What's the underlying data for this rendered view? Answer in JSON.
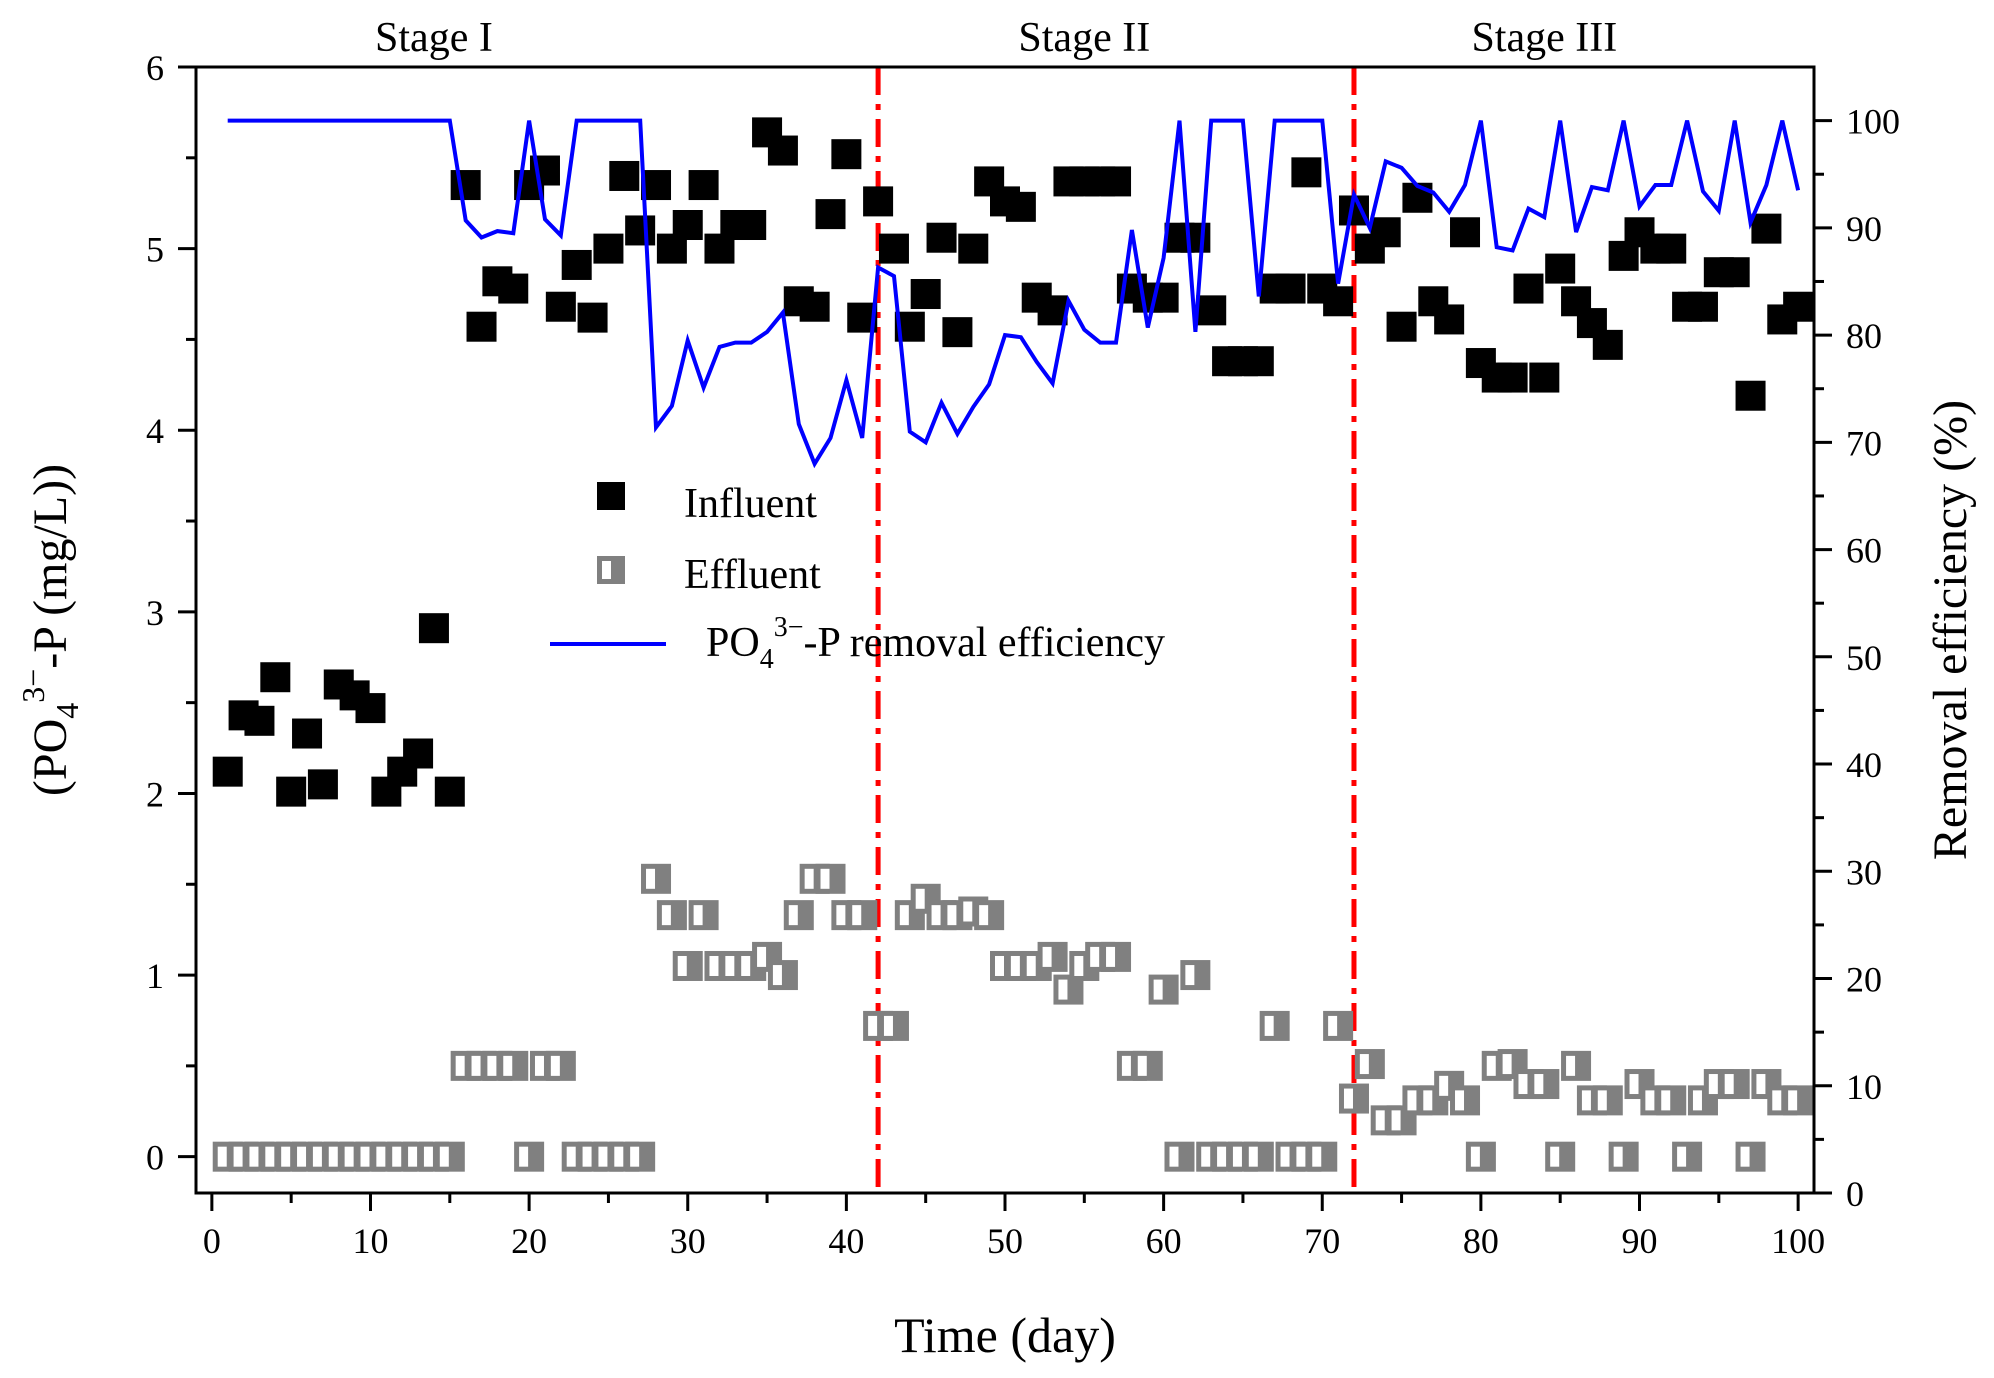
{
  "chart_data": {
    "type": "scatter",
    "title": "",
    "xlabel": "Time (day)",
    "ylabel_left": {
      "pre": "(PO",
      "sub": "4",
      "sup": "3−",
      "post": "-P  (mg/L))"
    },
    "ylabel_right": "Removal efficiency (%)",
    "xlim": [
      -1,
      101
    ],
    "ylim_left": [
      -0.2,
      6
    ],
    "ylim_right": [
      0,
      105
    ],
    "xticks": [
      0,
      10,
      20,
      30,
      40,
      50,
      60,
      70,
      80,
      90,
      100
    ],
    "yticks_left": [
      0,
      1,
      2,
      3,
      4,
      5,
      6
    ],
    "yticks_right": [
      0,
      10,
      20,
      30,
      40,
      50,
      60,
      70,
      80,
      90,
      100
    ],
    "grid": false,
    "legend_position": "center-left",
    "stages": [
      {
        "label": "Stage  I",
        "x_center": 14
      },
      {
        "label": "Stage II",
        "x_center": 55
      },
      {
        "label": "Stage III",
        "x_center": 84
      }
    ],
    "stage_dividers": [
      42,
      72
    ],
    "colors": {
      "influent": "#000000",
      "effluent": "#808080",
      "efficiency": "#0000ff",
      "divider": "#ff0000"
    },
    "series": [
      {
        "name": "Influent",
        "kind": "scatter",
        "marker": "filled-square",
        "axis": "left",
        "x": [
          1,
          2,
          3,
          4,
          5,
          6,
          7,
          8,
          9,
          10,
          11,
          12,
          13,
          14,
          15,
          16,
          17,
          18,
          19,
          20,
          21,
          22,
          23,
          24,
          25,
          26,
          27,
          28,
          29,
          30,
          31,
          32,
          33,
          34,
          35,
          36,
          37,
          38,
          39,
          40,
          41,
          42,
          43,
          44,
          45,
          46,
          47,
          48,
          49,
          50,
          51,
          52,
          53,
          54,
          55,
          56,
          57,
          58,
          59,
          60,
          61,
          62,
          63,
          64,
          65,
          66,
          67,
          68,
          69,
          70,
          71,
          72,
          73,
          74,
          75,
          76,
          77,
          78,
          79,
          80,
          81,
          82,
          83,
          84,
          85,
          86,
          87,
          88,
          89,
          90,
          91,
          92,
          93,
          94,
          95,
          96,
          97,
          98,
          99,
          100
        ],
        "y": [
          2.12,
          2.43,
          2.4,
          2.64,
          2.01,
          2.33,
          2.05,
          2.6,
          2.54,
          2.47,
          2.01,
          2.12,
          2.22,
          2.91,
          2.01,
          5.35,
          4.57,
          4.82,
          4.78,
          5.35,
          5.43,
          4.68,
          4.91,
          4.62,
          5.0,
          5.4,
          5.1,
          5.35,
          5.0,
          5.13,
          5.35,
          5.0,
          5.13,
          5.13,
          5.64,
          5.54,
          4.71,
          4.68,
          5.19,
          5.52,
          4.62,
          5.26,
          5.0,
          4.57,
          4.75,
          5.06,
          4.54,
          5.0,
          5.37,
          5.26,
          5.23,
          4.73,
          4.66,
          5.37,
          5.37,
          5.37,
          5.37,
          4.78,
          4.73,
          4.73,
          5.06,
          5.06,
          4.66,
          4.38,
          4.38,
          4.38,
          4.78,
          4.78,
          5.42,
          4.78,
          4.71,
          5.21,
          5.0,
          5.09,
          4.57,
          5.28,
          4.71,
          4.61,
          5.09,
          4.37,
          4.29,
          4.29,
          4.78,
          4.29,
          4.89,
          4.71,
          4.59,
          4.47,
          4.96,
          5.09,
          5.0,
          5.0,
          4.68,
          4.68,
          4.87,
          4.87,
          4.19,
          5.11,
          4.61,
          4.68
        ]
      },
      {
        "name": "Effluent",
        "kind": "scatter",
        "marker": "half-filled-square",
        "axis": "left",
        "x": [
          1,
          2,
          3,
          4,
          5,
          6,
          7,
          8,
          9,
          10,
          11,
          12,
          13,
          14,
          15,
          16,
          17,
          18,
          19,
          20,
          21,
          22,
          23,
          24,
          25,
          26,
          27,
          28,
          29,
          30,
          31,
          32,
          33,
          34,
          35,
          36,
          37,
          38,
          39,
          40,
          41,
          42,
          43,
          44,
          45,
          46,
          47,
          48,
          49,
          50,
          51,
          52,
          53,
          54,
          55,
          56,
          57,
          58,
          59,
          60,
          61,
          62,
          63,
          64,
          65,
          66,
          67,
          68,
          69,
          70,
          71,
          72,
          73,
          74,
          75,
          76,
          77,
          78,
          79,
          80,
          81,
          82,
          83,
          84,
          85,
          86,
          87,
          88,
          89,
          90,
          91,
          92,
          93,
          94,
          95,
          96,
          97,
          98,
          99,
          100
        ],
        "y": [
          0,
          0,
          0,
          0,
          0,
          0,
          0,
          0,
          0,
          0,
          0,
          0,
          0,
          0,
          0,
          0.5,
          0.5,
          0.5,
          0.5,
          0,
          0.5,
          0.5,
          0,
          0,
          0,
          0,
          0,
          1.53,
          1.33,
          1.05,
          1.33,
          1.05,
          1.05,
          1.05,
          1.1,
          1.0,
          1.33,
          1.53,
          1.53,
          1.33,
          1.33,
          0.72,
          0.72,
          1.33,
          1.42,
          1.33,
          1.33,
          1.35,
          1.33,
          1.05,
          1.05,
          1.05,
          1.1,
          0.92,
          1.05,
          1.1,
          1.1,
          0.5,
          0.5,
          0.92,
          0,
          1.0,
          0,
          0,
          0,
          0,
          0.72,
          0,
          0,
          0,
          0.72,
          0.32,
          0.51,
          0.2,
          0.2,
          0.31,
          0.31,
          0.39,
          0.31,
          0,
          0.5,
          0.51,
          0.4,
          0.4,
          0,
          0.5,
          0.31,
          0.31,
          0,
          0.4,
          0.31,
          0.31,
          0,
          0.31,
          0.4,
          0.4,
          0,
          0.4,
          0.31,
          0.31
        ]
      },
      {
        "name": "PO4-P removal efficiency",
        "kind": "line",
        "axis": "right",
        "x": [
          1,
          2,
          3,
          4,
          5,
          6,
          7,
          8,
          9,
          10,
          11,
          12,
          13,
          14,
          15,
          16,
          17,
          18,
          19,
          20,
          21,
          22,
          23,
          24,
          25,
          26,
          27,
          28,
          29,
          30,
          31,
          32,
          33,
          34,
          35,
          36,
          37,
          38,
          39,
          40,
          41,
          42,
          42.5,
          43,
          44,
          45,
          46,
          47,
          48,
          49,
          50,
          51,
          52,
          53,
          54,
          55,
          56,
          57,
          58,
          59,
          60,
          61,
          62,
          63,
          64,
          65,
          66,
          67,
          68,
          69,
          70,
          71,
          72,
          73,
          74,
          75,
          76,
          77,
          78,
          79,
          80,
          81,
          82,
          83,
          84,
          85,
          86,
          87,
          88,
          89,
          90,
          91,
          92,
          93,
          94,
          95,
          96,
          97,
          98,
          99,
          100
        ],
        "y": [
          100,
          100,
          100,
          100,
          100,
          100,
          100,
          100,
          100,
          100,
          100,
          100,
          100,
          100,
          100,
          90.7,
          89.1,
          89.7,
          89.5,
          100,
          90.8,
          89.3,
          100,
          100,
          100,
          100,
          100,
          71.4,
          73.4,
          79.5,
          75.1,
          78.9,
          79.3,
          79.3,
          80.3,
          82.1,
          71.7,
          68.0,
          70.4,
          75.8,
          70.4,
          86.3,
          85.9,
          85.5,
          71.0,
          70.0,
          73.7,
          70.8,
          73.3,
          75.4,
          80.0,
          79.8,
          77.5,
          75.5,
          83.2,
          80.5,
          79.3,
          79.3,
          89.8,
          80.7,
          87.2,
          100,
          80.3,
          100,
          100,
          100,
          83.6,
          100,
          100,
          100,
          100,
          84.8,
          93.1,
          90.0,
          96.2,
          95.6,
          93.9,
          93.3,
          91.5,
          94.0,
          100,
          88.2,
          87.9,
          91.8,
          91.0,
          100,
          89.6,
          93.8,
          93.5,
          100,
          92.0,
          94.0,
          94.0,
          100,
          93.4,
          91.6,
          100,
          90.5,
          94.0,
          100,
          93.5
        ]
      }
    ]
  }
}
